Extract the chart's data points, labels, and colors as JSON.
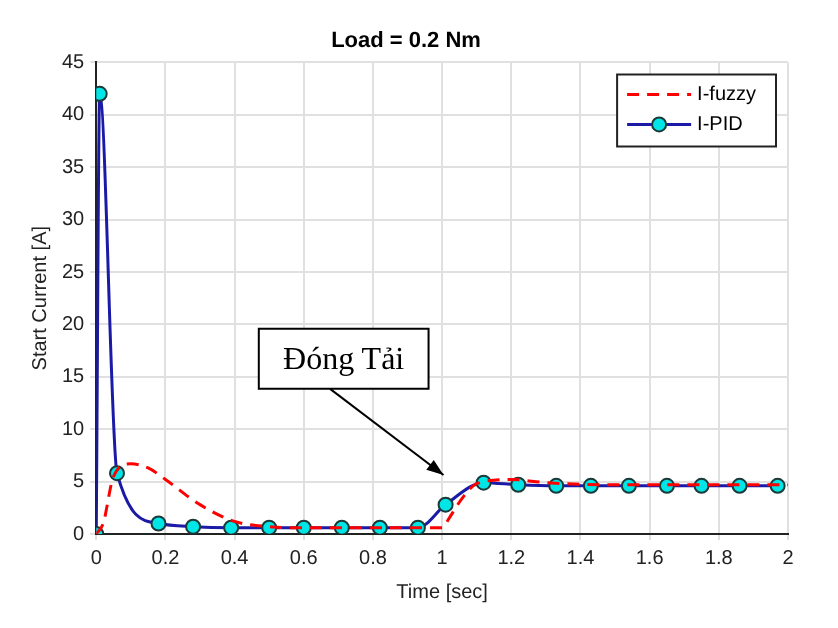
{
  "chart_data": {
    "type": "line",
    "title": "Load = 0.2 Nm",
    "xlabel": "Time [sec]",
    "ylabel": "Start Current [A]",
    "xlim": [
      0,
      2
    ],
    "xticks": [
      0,
      0.2,
      0.4,
      0.6,
      0.8,
      1,
      1.2,
      1.4,
      1.6,
      1.8,
      2
    ],
    "ylim": [
      0,
      45
    ],
    "yticks": [
      0,
      5,
      10,
      15,
      20,
      25,
      30,
      35,
      40,
      45
    ],
    "grid": true,
    "legend": "top right",
    "annotations": [
      "Đóng Tải"
    ],
    "series": [
      {
        "name": "I-fuzzy",
        "color": "#ff0000",
        "line_style": "dashed",
        "marker": "none",
        "x": [
          0,
          0.02,
          0.05,
          0.1,
          0.15,
          0.2,
          0.3,
          0.4,
          0.5,
          0.6,
          1.0,
          1.02,
          1.06,
          1.1,
          1.2,
          1.3,
          1.5,
          2
        ],
        "values": [
          0,
          1,
          5.5,
          6.7,
          6.3,
          5.2,
          2.8,
          1.2,
          0.7,
          0.6,
          0.6,
          1.5,
          3.5,
          4.8,
          5.2,
          4.9,
          4.7,
          4.7
        ]
      },
      {
        "name": "I-PID",
        "color": "#1a1aa6",
        "line_style": "solid",
        "marker": "circle",
        "x": [
          0,
          0.01,
          0.06,
          0.18,
          0.28,
          0.39,
          0.5,
          0.6,
          0.71,
          0.82,
          0.93,
          1.01,
          1.12,
          1.22,
          1.33,
          1.43,
          1.54,
          1.65,
          1.75,
          1.86,
          1.97
        ],
        "values": [
          0,
          42,
          5.8,
          1.0,
          0.7,
          0.6,
          0.6,
          0.6,
          0.6,
          0.6,
          0.6,
          2.8,
          4.9,
          4.7,
          4.6,
          4.6,
          4.6,
          4.6,
          4.6,
          4.6,
          4.6
        ]
      }
    ]
  }
}
